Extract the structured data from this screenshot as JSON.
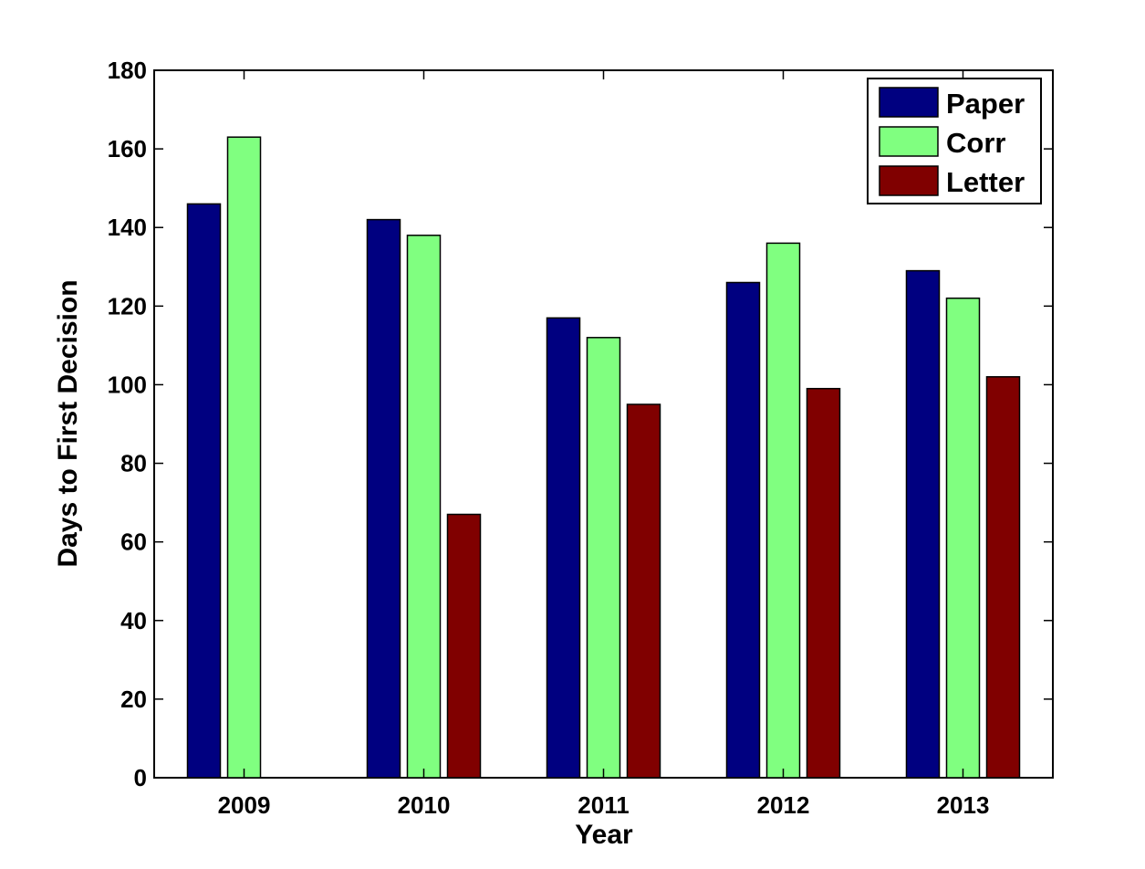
{
  "chart_data": {
    "type": "bar",
    "categories": [
      "2009",
      "2010",
      "2011",
      "2012",
      "2013"
    ],
    "series": [
      {
        "name": "Paper",
        "color": "#000080",
        "values": [
          146,
          142,
          117,
          126,
          129
        ]
      },
      {
        "name": "Corr",
        "color": "#80ff80",
        "values": [
          163,
          138,
          112,
          136,
          122
        ]
      },
      {
        "name": "Letter",
        "color": "#800000",
        "values": [
          null,
          67,
          95,
          99,
          102
        ]
      }
    ],
    "title": "",
    "xlabel": "Year",
    "ylabel": "Days to First Decision",
    "ylim": [
      0,
      180
    ],
    "yticks": [
      "0",
      "20",
      "40",
      "60",
      "80",
      "100",
      "120",
      "140",
      "160",
      "180"
    ],
    "grid": false,
    "legend_position": "top-right"
  }
}
